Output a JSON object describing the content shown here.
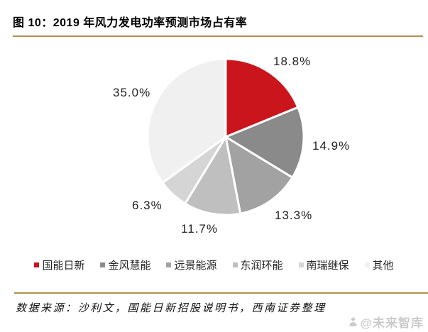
{
  "figure": {
    "title": "图 10：2019 年风力发电功率预测市场占有率",
    "source_note": "数据来源：沙利文，国能日新招股说明书，西南证券整理",
    "watermark": "@未来智库"
  },
  "chart_data": {
    "type": "pie",
    "title": "2019 年风力发电功率预测市场占有率",
    "categories": [
      "国能日新",
      "金风慧能",
      "远景能源",
      "东润环能",
      "南瑞继保",
      "其他"
    ],
    "values": [
      18.8,
      14.9,
      13.3,
      11.7,
      6.3,
      35.0
    ],
    "labels": [
      "18.8%",
      "14.9%",
      "13.3%",
      "11.7%",
      "6.3%",
      "35.0%"
    ],
    "colors": [
      "#C9151B",
      "#8A8A8A",
      "#A2A2A2",
      "#BFBFBF",
      "#D5D5D5",
      "#F0F0F0"
    ],
    "units": "%",
    "start_angle_deg": 0,
    "direction": "clockwise",
    "legend_position": "bottom",
    "slice_border_color": "#FFFFFF"
  },
  "style": {
    "accent_gold": "#B2904F",
    "label_color": "#1F1F1F",
    "watermark_color": "#CBCBCB",
    "background": "#FFFFFF"
  }
}
